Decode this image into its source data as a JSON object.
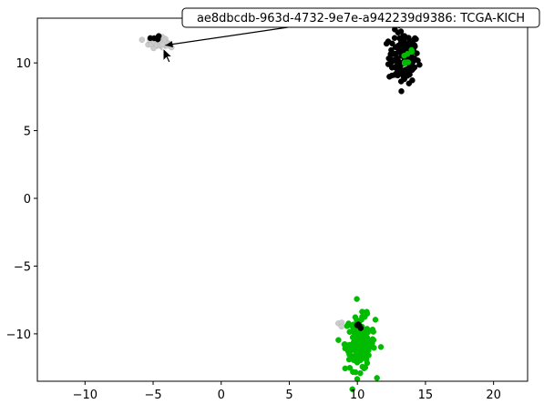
{
  "chart_data": {
    "type": "scatter",
    "title": "",
    "xlabel": "",
    "ylabel": "",
    "xlim": [
      -13.5,
      22.5
    ],
    "ylim": [
      -13.5,
      13.3
    ],
    "xticks": [
      -10,
      -5,
      0,
      5,
      10,
      15,
      20
    ],
    "yticks": [
      -10,
      -5,
      0,
      5,
      10
    ],
    "xtick_labels": [
      "−10",
      "−5",
      "0",
      "5",
      "10",
      "15",
      "20"
    ],
    "ytick_labels": [
      "−10",
      "−5",
      "0",
      "5",
      "10"
    ],
    "grid": false,
    "clusters": [
      {
        "color": "#000000",
        "center": [
          13.4,
          10.4
        ],
        "spread": [
          0.55,
          0.95
        ],
        "n": 140
      },
      {
        "color": "#00bb00",
        "center": [
          13.7,
          10.7
        ],
        "spread": [
          0.25,
          0.6
        ],
        "n": 8
      },
      {
        "color": "#cccccc",
        "center": [
          -4.6,
          11.5
        ],
        "spread": [
          0.35,
          0.18
        ],
        "n": 70
      },
      {
        "color": "#000000",
        "center": [
          -4.9,
          11.9
        ],
        "spread": [
          0.15,
          0.1
        ],
        "n": 4
      },
      {
        "color": "#00bb00",
        "center": [
          10.2,
          -10.7
        ],
        "spread": [
          0.55,
          1.0
        ],
        "n": 150
      },
      {
        "color": "#000000",
        "center": [
          10.2,
          -9.4
        ],
        "spread": [
          0.3,
          0.12
        ],
        "n": 5
      },
      {
        "color": "#cccccc",
        "center": [
          8.7,
          -9.3
        ],
        "spread": [
          0.15,
          0.1
        ],
        "n": 3
      }
    ],
    "annotation": {
      "text": "ae8dbcdb-963d-4732-9e7e-a942239d9386: TCGA-KICH",
      "point": [
        -4.1,
        11.3
      ]
    }
  },
  "icons": {
    "cursor": "mouse-pointer-icon"
  }
}
